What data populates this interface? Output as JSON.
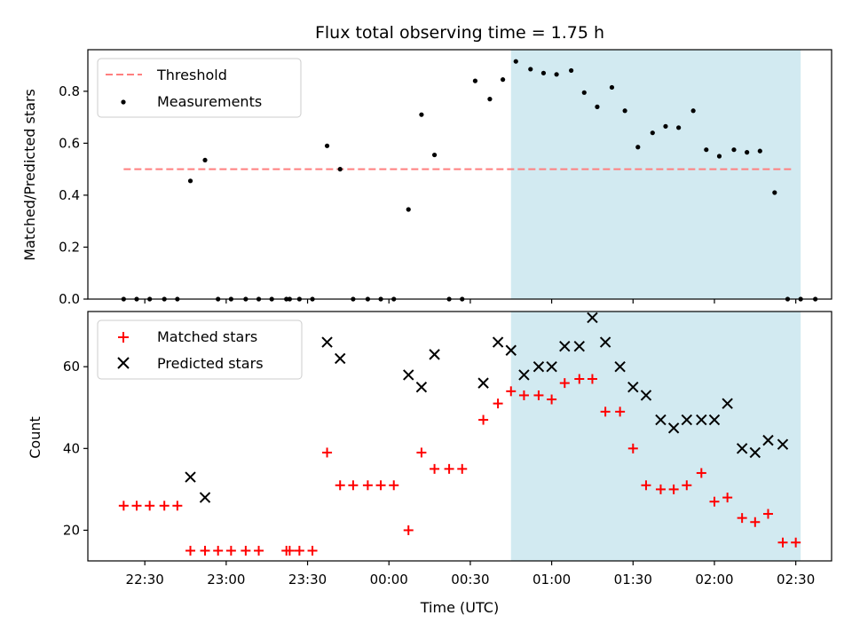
{
  "title": "Flux total observing time = 1.75 h",
  "colors": {
    "highlight": "#add8e6",
    "threshold": "#ff7f7f",
    "measurements": "#000000",
    "matched": "#ff0000",
    "predicted": "#000000"
  },
  "chart_data": [
    {
      "type": "scatter",
      "panel": "top",
      "ylabel": "Matched/Predicted stars",
      "xlabel": "",
      "x_unit": "hours after 22:00 UTC",
      "xlim": [
        22.15,
        26.72
      ],
      "ylim": [
        0,
        0.96
      ],
      "yticks": [
        0.0,
        0.2,
        0.4,
        0.6,
        0.8
      ],
      "ytick_labels": [
        "0.0",
        "0.2",
        "0.4",
        "0.6",
        "0.8"
      ],
      "highlight_span": [
        24.75,
        26.53
      ],
      "grid": false,
      "legend": {
        "position": "upper-left",
        "entries": [
          "Threshold",
          "Measurements"
        ]
      },
      "series": [
        {
          "name": "Threshold",
          "kind": "dashed-line",
          "x": [
            22.37,
            26.48
          ],
          "values": [
            0.5,
            0.5
          ]
        },
        {
          "name": "Measurements",
          "kind": "dots",
          "x": [
            22.37,
            22.45,
            22.53,
            22.62,
            22.7,
            22.78,
            22.87,
            22.95,
            23.03,
            23.12,
            23.2,
            23.28,
            23.37,
            23.39,
            23.45,
            23.53,
            23.62,
            23.7,
            23.78,
            23.87,
            23.95,
            24.03,
            24.12,
            24.2,
            24.28,
            24.37,
            24.45,
            24.53,
            24.62,
            24.7,
            24.78,
            24.87,
            24.95,
            25.03,
            25.12,
            25.2,
            25.28,
            25.37,
            25.45,
            25.53,
            25.62,
            25.7,
            25.78,
            25.87,
            25.95,
            26.03,
            26.12,
            26.2,
            26.28,
            26.37,
            26.45,
            26.53,
            26.62
          ],
          "values": [
            0.0,
            0.0,
            0.0,
            0.0,
            0.0,
            0.455,
            0.535,
            0.0,
            0.0,
            0.0,
            0.0,
            0.0,
            0.0,
            0.0,
            0.0,
            0.0,
            0.59,
            0.5,
            0.0,
            0.0,
            0.0,
            0.0,
            0.345,
            0.71,
            0.555,
            0.0,
            0.0,
            0.84,
            0.77,
            0.845,
            0.915,
            0.885,
            0.87,
            0.865,
            0.88,
            0.795,
            0.74,
            0.815,
            0.725,
            0.585,
            0.64,
            0.665,
            0.66,
            0.725,
            0.575,
            0.55,
            0.575,
            0.565,
            0.57,
            0.41,
            0.0,
            0.0,
            0.0
          ]
        }
      ]
    },
    {
      "type": "scatter",
      "panel": "bottom",
      "ylabel": "Count",
      "xlabel": "Time (UTC)",
      "x_unit": "hours after 22:00 UTC",
      "xlim": [
        22.15,
        26.72
      ],
      "ylim": [
        12.5,
        73.5
      ],
      "yticks": [
        20,
        40,
        60
      ],
      "ytick_labels": [
        "20",
        "40",
        "60"
      ],
      "xticks": [
        22.5,
        23.0,
        23.5,
        24.0,
        24.5,
        25.0,
        25.5,
        26.0,
        26.5
      ],
      "xtick_labels": [
        "22:30",
        "23:00",
        "23:30",
        "00:00",
        "00:30",
        "01:00",
        "01:30",
        "02:00",
        "02:30"
      ],
      "highlight_span": [
        24.75,
        26.53
      ],
      "grid": false,
      "legend": {
        "position": "upper-left",
        "entries": [
          "Matched stars",
          "Predicted stars"
        ]
      },
      "series": [
        {
          "name": "Matched stars",
          "kind": "plus",
          "x": [
            22.37,
            22.45,
            22.53,
            22.62,
            22.7,
            22.78,
            22.87,
            22.95,
            23.03,
            23.12,
            23.2,
            23.37,
            23.39,
            23.45,
            23.53,
            23.62,
            23.7,
            23.78,
            23.87,
            23.95,
            24.03,
            24.12,
            24.2,
            24.28,
            24.37,
            24.45,
            24.58,
            24.67,
            24.75,
            24.83,
            24.92,
            25.0,
            25.08,
            25.17,
            25.25,
            25.33,
            25.42,
            25.5,
            25.58,
            25.67,
            25.75,
            25.83,
            25.92,
            26.0,
            26.08,
            26.17,
            26.25,
            26.33,
            26.42,
            26.5
          ],
          "values": [
            26,
            26,
            26,
            26,
            26,
            15,
            15,
            15,
            15,
            15,
            15,
            15,
            15,
            15,
            15,
            39,
            31,
            31,
            31,
            31,
            31,
            20,
            39,
            35,
            35,
            35,
            47,
            51,
            54,
            53,
            53,
            52,
            56,
            57,
            57,
            49,
            49,
            40,
            31,
            30,
            30,
            31,
            34,
            27,
            28,
            23,
            22,
            24,
            17,
            17
          ]
        },
        {
          "name": "Predicted stars",
          "kind": "cross",
          "x": [
            22.78,
            22.87,
            23.62,
            23.7,
            24.12,
            24.2,
            24.28,
            24.58,
            24.67,
            24.75,
            24.83,
            24.92,
            25.0,
            25.08,
            25.17,
            25.25,
            25.33,
            25.42,
            25.5,
            25.58,
            25.67,
            25.75,
            25.83,
            25.92,
            26.0,
            26.08,
            26.17,
            26.25,
            26.33,
            26.42
          ],
          "values": [
            33,
            28,
            66,
            62,
            58,
            55,
            63,
            56,
            66,
            64,
            58,
            60,
            60,
            65,
            65,
            72,
            66,
            60,
            55,
            53,
            47,
            45,
            47,
            47,
            47,
            51,
            40,
            39,
            42,
            41
          ]
        }
      ]
    }
  ]
}
